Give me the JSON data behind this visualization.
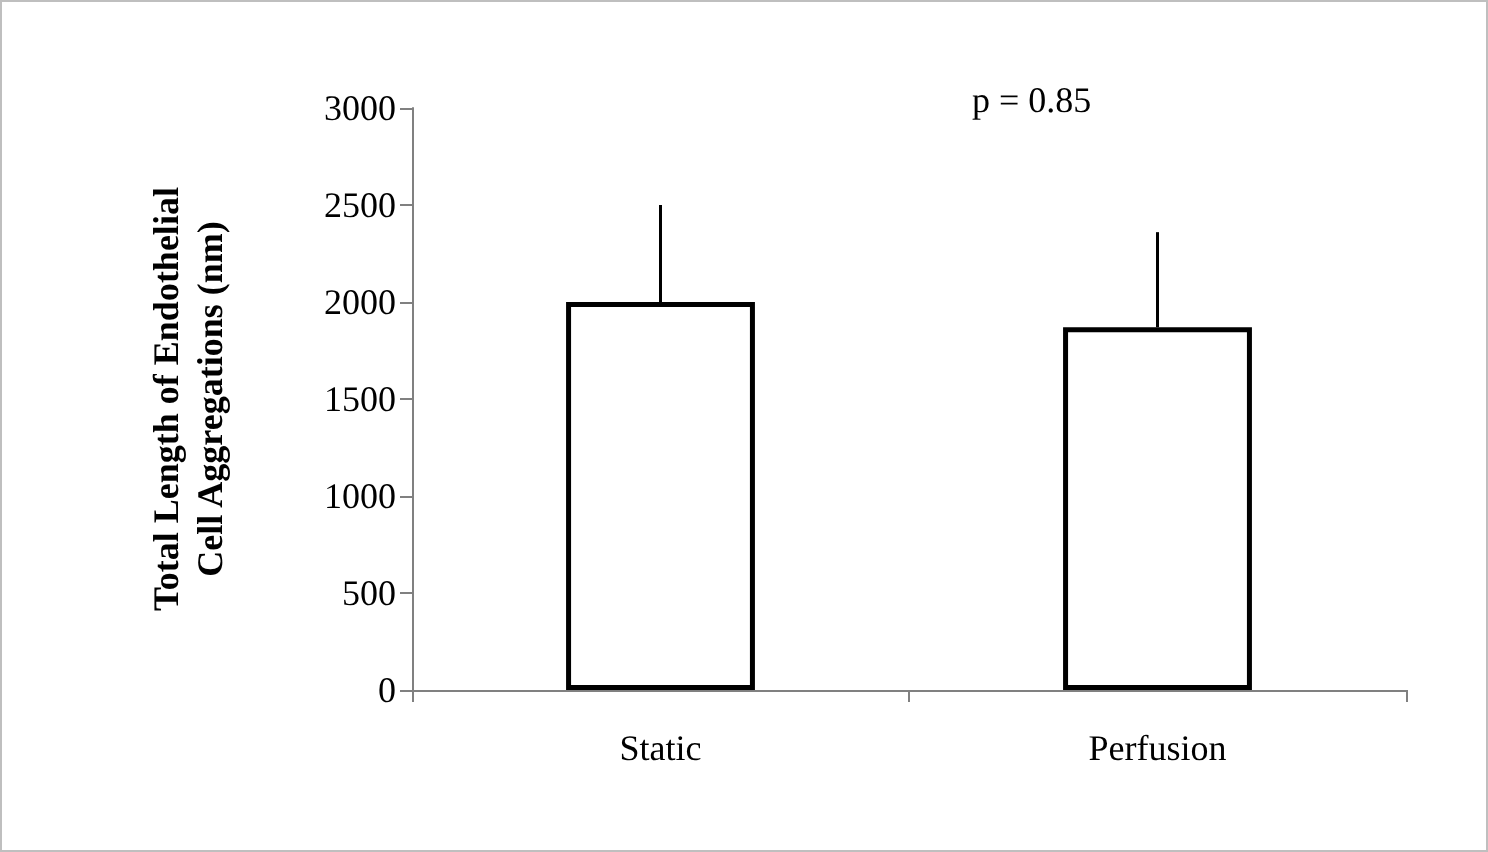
{
  "chart_data": {
    "type": "bar",
    "ylabel": "Total Length of Endothelial Cell Aggregations (nm)",
    "categories": [
      "Static",
      "Perfusion"
    ],
    "values": [
      2000,
      1870
    ],
    "errors": [
      [
        2000,
        2500
      ],
      [
        1870,
        2360
      ]
    ],
    "color": "#ffffff",
    "ylim": [
      0,
      3000
    ],
    "yticks": [
      0,
      500,
      1000,
      1500,
      2000,
      2500,
      3000
    ],
    "grid": false,
    "annotations": [
      "p = 0.85"
    ]
  }
}
